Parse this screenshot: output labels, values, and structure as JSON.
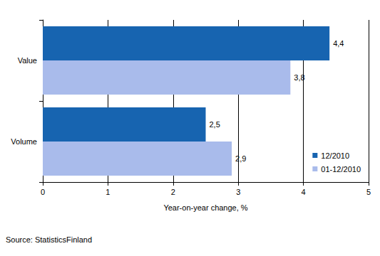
{
  "chart_data": {
    "type": "bar",
    "orientation": "horizontal",
    "categories": [
      "Value",
      "Volume"
    ],
    "series": [
      {
        "name": "12/2010",
        "color": "#1764b0",
        "values": [
          4.4,
          2.5
        ],
        "value_labels": [
          "4,4",
          "2,5"
        ]
      },
      {
        "name": "01-12/2010",
        "color": "#a9bbeb",
        "values": [
          3.8,
          2.9
        ],
        "value_labels": [
          "3,8",
          "2,9"
        ]
      }
    ],
    "xlabel": "Year-on-year change, %",
    "xlim": [
      0,
      5
    ],
    "xticks": [
      0,
      1,
      2,
      3,
      4,
      5
    ],
    "grid": true,
    "legend": "lower right",
    "data_labels": true,
    "annotations": [
      "Source: StatisticsFinland"
    ]
  }
}
